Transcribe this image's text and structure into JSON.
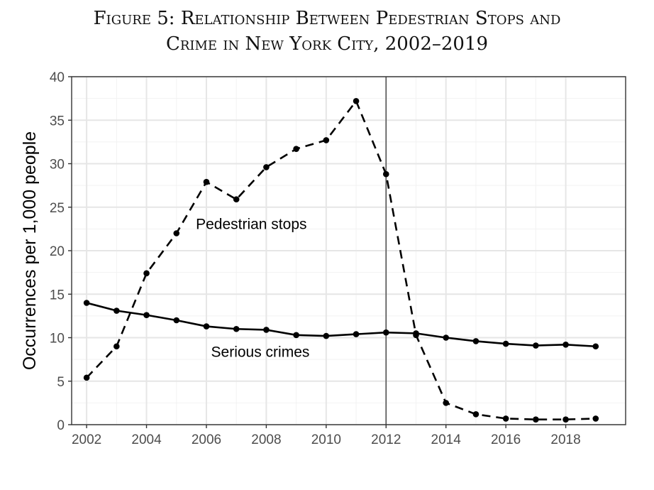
{
  "figure": {
    "title_line1": "Figure 5: Relationship Between Pedestrian Stops and",
    "title_line2": "Crime in New York City, 2002–2019"
  },
  "chart_data": {
    "type": "line",
    "x": [
      2002,
      2003,
      2004,
      2005,
      2006,
      2007,
      2008,
      2009,
      2010,
      2011,
      2012,
      2013,
      2014,
      2015,
      2016,
      2017,
      2018,
      2019
    ],
    "series": [
      {
        "name": "Pedestrian stops",
        "style": "dashed",
        "color": "#000000",
        "values": [
          5.4,
          9.0,
          17.4,
          22.0,
          27.9,
          25.9,
          29.6,
          31.7,
          32.7,
          37.2,
          28.8,
          10.3,
          2.5,
          1.2,
          0.7,
          0.6,
          0.6,
          0.7
        ]
      },
      {
        "name": "Serious crimes",
        "style": "solid",
        "color": "#000000",
        "values": [
          14.0,
          13.1,
          12.6,
          12.0,
          11.3,
          11.0,
          10.9,
          10.3,
          10.2,
          10.4,
          10.6,
          10.5,
          10.0,
          9.6,
          9.3,
          9.1,
          9.2,
          9.0
        ]
      }
    ],
    "xlabel": "",
    "ylabel": "Occurrences per 1,000 people",
    "xlim": [
      2001.5,
      2020
    ],
    "ylim": [
      0,
      40
    ],
    "x_ticks": [
      2002,
      2004,
      2006,
      2008,
      2010,
      2012,
      2014,
      2016,
      2018
    ],
    "y_ticks": [
      0,
      5,
      10,
      15,
      20,
      25,
      30,
      35,
      40
    ],
    "reference_line_x": 2012,
    "grid": true,
    "annotations": [
      {
        "text": "Pedestrian stops",
        "x": 2007.5,
        "y": 22.5
      },
      {
        "text": "Serious crimes",
        "x": 2007.8,
        "y": 7.8
      }
    ]
  }
}
